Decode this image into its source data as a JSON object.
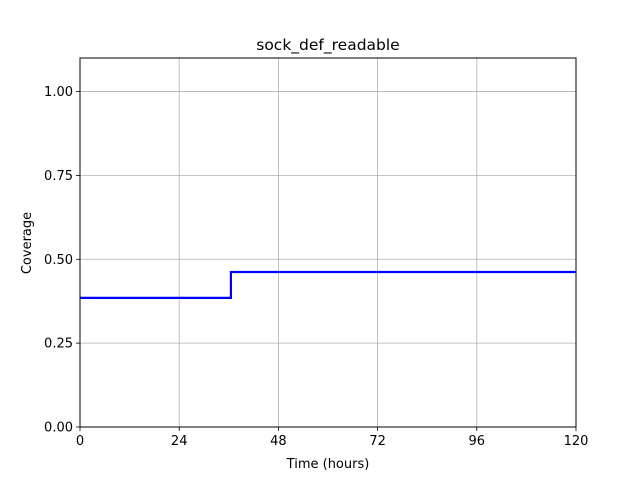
{
  "chart_data": {
    "type": "line",
    "title": "sock_def_readable",
    "xlabel": "Time (hours)",
    "ylabel": "Coverage",
    "xlim": [
      0,
      120
    ],
    "ylim": [
      0.0,
      1.1
    ],
    "xticks": [
      0,
      24,
      48,
      72,
      96,
      120
    ],
    "xtick_labels": [
      "0",
      "24",
      "48",
      "72",
      "96",
      "120"
    ],
    "yticks": [
      0.0,
      0.25,
      0.5,
      0.75,
      1.0
    ],
    "ytick_labels": [
      "0.00",
      "0.25",
      "0.50",
      "0.75",
      "1.00"
    ],
    "grid": true,
    "legend": "none",
    "series": [
      {
        "color": "#0000ff",
        "style": "step",
        "x": [
          0,
          36.5,
          36.5,
          120
        ],
        "y": [
          0.385,
          0.385,
          0.462,
          0.462
        ]
      }
    ]
  }
}
